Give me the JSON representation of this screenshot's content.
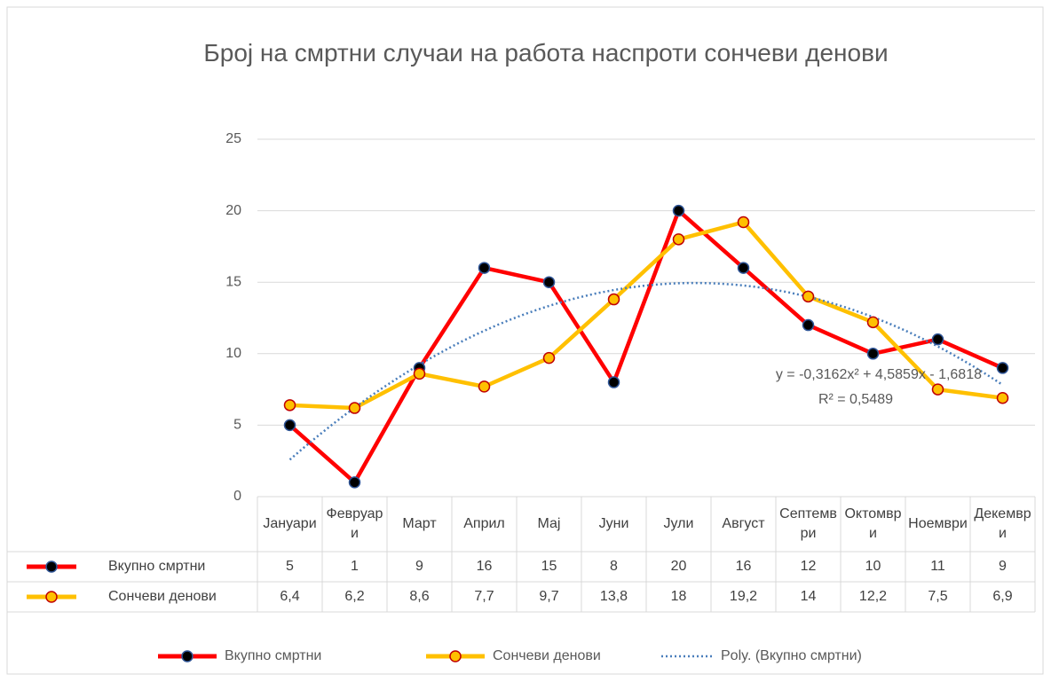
{
  "chart_data": {
    "type": "line",
    "title": "Број на смртни случаи на работа наспроти сончеви денови",
    "categories": [
      "Јануари",
      "Февруари",
      "Март",
      "Април",
      "Мај",
      "Јуни",
      "Јули",
      "Август",
      "Септември",
      "Октомври",
      "Ноември",
      "Декември"
    ],
    "series": [
      {
        "name": "Вкупно смртни",
        "color": "#ff0000",
        "marker_fill": "#000000",
        "marker_edge": "#2f5597",
        "values": [
          5,
          1,
          9,
          16,
          15,
          8,
          20,
          16,
          12,
          10,
          11,
          9
        ]
      },
      {
        "name": "Сончеви денови",
        "color": "#ffc000",
        "marker_fill": "#ffc000",
        "marker_edge": "#c00000",
        "values": [
          6.4,
          6.2,
          8.6,
          7.7,
          9.7,
          13.8,
          18,
          19.2,
          14,
          12.2,
          7.5,
          6.9
        ],
        "value_labels": [
          "6,4",
          "6,2",
          "8,6",
          "7,7",
          "9,7",
          "13,8",
          "18",
          "19,2",
          "14",
          "12,2",
          "7,5",
          "6,9"
        ]
      }
    ],
    "trendline": {
      "name": "Poly. (Вкупно смртни)",
      "series": 0,
      "order": 2,
      "color": "#4a7ebb",
      "equation": "y = -0,3162x² + 4,5859x - 1,6818",
      "r_squared": "R² = 0,5489"
    },
    "ylim": [
      0,
      25
    ],
    "yticks": [
      0,
      5,
      10,
      15,
      20,
      25
    ],
    "grid": true,
    "legend": "bottom",
    "data_table": true
  }
}
